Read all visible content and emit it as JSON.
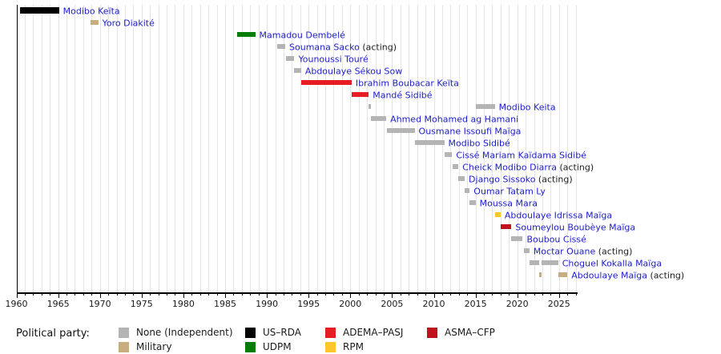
{
  "chart_data": {
    "type": "bar",
    "subtype": "gantt-timeline",
    "title": "",
    "x_axis": {
      "min": 1960,
      "max": 2027.2,
      "major_tick_interval": 5,
      "minor_tick_interval": 1,
      "grid": true,
      "tick_labels": [
        "1960",
        "1965",
        "1970",
        "1975",
        "1980",
        "1985",
        "1990",
        "1995",
        "2000",
        "2005",
        "2010",
        "2015",
        "2020",
        "2025"
      ]
    },
    "label_color": "#2020cc",
    "suffix_color": "#202122",
    "legend": {
      "title": "Political party:",
      "entries": [
        {
          "key": "none",
          "label": "None (Independent)",
          "color": "#b4b4b4"
        },
        {
          "key": "military",
          "label": "Military",
          "color": "#c8ad80"
        },
        {
          "key": "us_rda",
          "label": "US–RDA",
          "color": "#000000"
        },
        {
          "key": "udpm",
          "label": "UDPM",
          "color": "#067d06"
        },
        {
          "key": "adema",
          "label": "ADEMA–PASJ",
          "color": "#e81c23"
        },
        {
          "key": "rpm",
          "label": "RPM",
          "color": "#fcc62d"
        },
        {
          "key": "asma",
          "label": "ASMA–CFP",
          "color": "#c0111f"
        }
      ],
      "columns": [
        [
          "none",
          "military"
        ],
        [
          "us_rda",
          "udpm"
        ],
        [
          "adema",
          "rpm"
        ],
        [
          "asma"
        ]
      ]
    },
    "people": [
      {
        "name": "Modibo Keïta",
        "suffix": "",
        "party": "us_rda",
        "terms": [
          [
            1960.45,
            1965.1
          ]
        ],
        "thick": true
      },
      {
        "name": "Yoro Diakité",
        "suffix": "",
        "party": "military",
        "terms": [
          [
            1968.9,
            1969.8
          ]
        ]
      },
      {
        "name": "Mamadou Dembelé",
        "suffix": "",
        "party": "udpm",
        "terms": [
          [
            1986.4,
            1988.6
          ]
        ]
      },
      {
        "name": "Soumana Sacko",
        "suffix": "(acting)",
        "party": "none",
        "terms": [
          [
            1991.25,
            1992.2
          ]
        ]
      },
      {
        "name": "Younoussi Touré",
        "suffix": "",
        "party": "none",
        "terms": [
          [
            1992.3,
            1993.3
          ]
        ]
      },
      {
        "name": "Abdoulaye Sékou Sow",
        "suffix": "",
        "party": "none",
        "terms": [
          [
            1993.3,
            1994.1
          ]
        ]
      },
      {
        "name": "Ibrahim Boubacar Keïta",
        "suffix": "",
        "party": "adema",
        "terms": [
          [
            1994.1,
            2000.15
          ]
        ]
      },
      {
        "name": "Mandé Sidibé",
        "suffix": "",
        "party": "adema",
        "terms": [
          [
            2000.15,
            2002.2
          ]
        ]
      },
      {
        "name": "Modibo Keita",
        "suffix": "",
        "party": "none",
        "terms": [
          [
            2002.2,
            2002.45
          ],
          [
            2015.0,
            2017.3
          ]
        ]
      },
      {
        "name": "Ahmed Mohamed ag Hamani",
        "suffix": "",
        "party": "none",
        "terms": [
          [
            2002.45,
            2004.3
          ]
        ]
      },
      {
        "name": "Ousmane Issoufi Maïga",
        "suffix": "",
        "party": "none",
        "terms": [
          [
            2004.35,
            2007.7
          ]
        ]
      },
      {
        "name": "Modibo Sidibé",
        "suffix": "",
        "party": "none",
        "terms": [
          [
            2007.75,
            2011.25
          ]
        ]
      },
      {
        "name": "Cissé Mariam Kaïdama Sidibé",
        "suffix": "",
        "party": "none",
        "terms": [
          [
            2011.3,
            2012.2
          ]
        ]
      },
      {
        "name": "Cheick Modibo Diarra",
        "suffix": "(acting)",
        "party": "none",
        "terms": [
          [
            2012.3,
            2012.95
          ]
        ]
      },
      {
        "name": "Django Sissoko",
        "suffix": "(acting)",
        "party": "none",
        "terms": [
          [
            2012.95,
            2013.7
          ]
        ]
      },
      {
        "name": "Oumar Tatam Ly",
        "suffix": "",
        "party": "none",
        "terms": [
          [
            2013.7,
            2014.3
          ]
        ]
      },
      {
        "name": "Moussa Mara",
        "suffix": "",
        "party": "none",
        "terms": [
          [
            2014.3,
            2015.0
          ]
        ]
      },
      {
        "name": "Abdoulaye Idrissa Maïga",
        "suffix": "",
        "party": "rpm",
        "terms": [
          [
            2017.3,
            2018.0
          ]
        ]
      },
      {
        "name": "Soumeylou Boubèye Maïga",
        "suffix": "",
        "party": "asma",
        "terms": [
          [
            2018.0,
            2019.3
          ]
        ]
      },
      {
        "name": "Boubou Cissé",
        "suffix": "",
        "party": "none",
        "terms": [
          [
            2019.3,
            2020.65
          ]
        ]
      },
      {
        "name": "Moctar Ouane",
        "suffix": "(acting)",
        "party": "none",
        "terms": [
          [
            2020.75,
            2021.45
          ]
        ]
      },
      {
        "name": "Choguel Kokalla Maïga",
        "suffix": "",
        "party": "none",
        "terms": [
          [
            2021.45,
            2022.65
          ],
          [
            2022.95,
            2024.9
          ]
        ]
      },
      {
        "name": "Abdoulaye Maïga",
        "suffix": "(acting)",
        "party": "military",
        "terms": [
          [
            2022.65,
            2022.95
          ],
          [
            2024.9,
            2026.0
          ]
        ]
      }
    ]
  }
}
